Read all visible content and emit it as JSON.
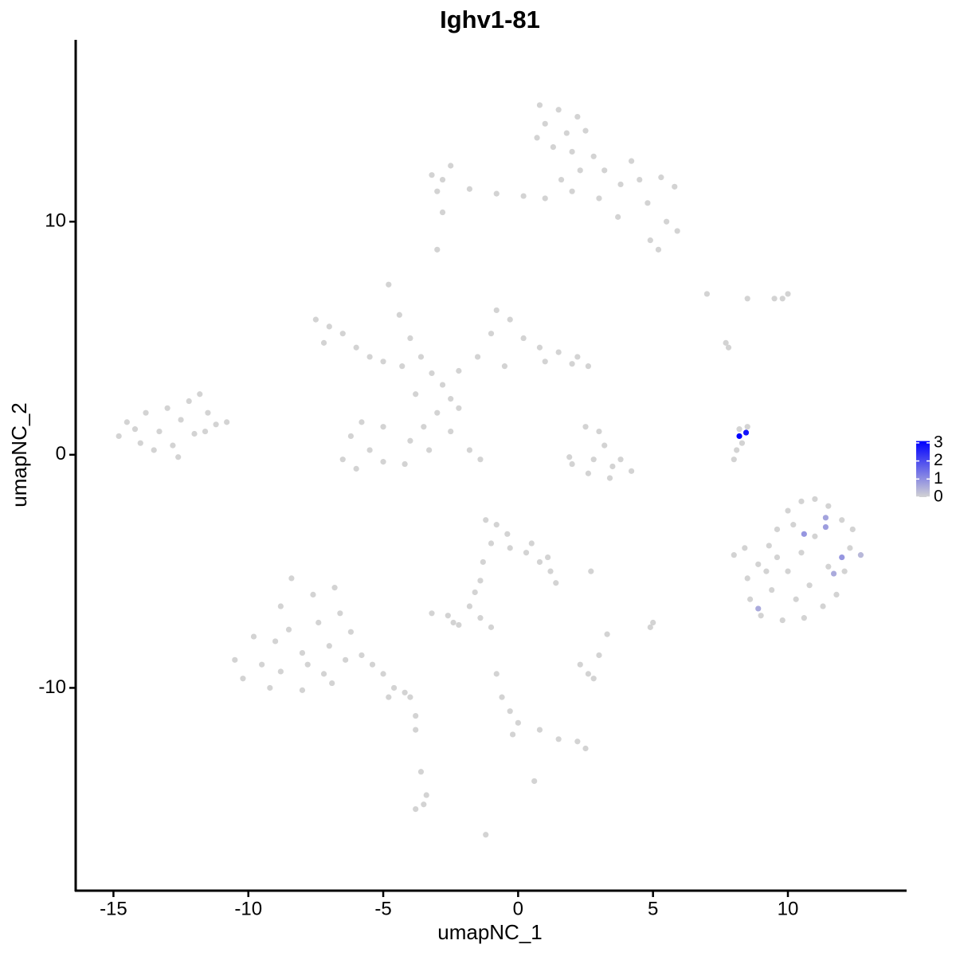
{
  "chart_data": {
    "type": "scatter",
    "title": "Ighv1-81",
    "x_label": "umapNC_1",
    "y_label": "umapNC_2",
    "xlim": [
      -16.4,
      14.4
    ],
    "ylim": [
      -18.7,
      17.8
    ],
    "xticks": [
      -15,
      -10,
      -5,
      0,
      5,
      10
    ],
    "yticks": [
      -10,
      0,
      10
    ],
    "grid": false,
    "series": [
      {
        "color": "#d3d3d3",
        "x": [
          0.8,
          1.5,
          2.2,
          1.0,
          1.8,
          2.5,
          1.3,
          2.0,
          0.7,
          2.8,
          3.2,
          3.8,
          4.5,
          5.3,
          5.8,
          4.8,
          5.5,
          5.9,
          4.9,
          5.2,
          3.7,
          3.0,
          2.0,
          1.0,
          0.2,
          -0.8,
          -1.8,
          -2.8,
          -3.2,
          -2.5,
          -3.0,
          -2.8,
          -3.0,
          2.3,
          1.6,
          4.2,
          -7.5,
          -7.0,
          -6.5,
          -7.2,
          -6.0,
          -5.5,
          -5.0,
          -4.3,
          -4.8,
          -4.4,
          -4.0,
          -3.6,
          -3.2,
          -2.8,
          -2.2,
          -1.5,
          -1.0,
          -0.8,
          -0.3,
          0.2,
          0.8,
          1.5,
          2.2,
          2.6,
          2.0,
          1.0,
          -0.5,
          -2.5,
          -3.0,
          -3.5,
          -4.0,
          -4.2,
          -5.0,
          -5.5,
          -6.2,
          -6.5,
          -6.0,
          -5.0,
          -3.3,
          -2.5,
          -1.8,
          -1.4,
          -2.2,
          -3.8,
          -5.8,
          -14.8,
          -14.5,
          -14.0,
          -13.8,
          -13.3,
          -13.0,
          -12.8,
          -12.5,
          -12.2,
          -12.0,
          -11.8,
          -11.5,
          -11.2,
          -10.8,
          -13.5,
          -12.6,
          -14.2,
          -11.6,
          2.5,
          3.0,
          3.2,
          2.8,
          3.5,
          2.0,
          1.9,
          2.6,
          3.4,
          4.2,
          3.8,
          8.0,
          8.1,
          8.3,
          8.5,
          8.2,
          8.0,
          8.4,
          8.9,
          9.3,
          9.6,
          10.0,
          10.5,
          11.0,
          11.5,
          12.0,
          12.4,
          12.3,
          12.1,
          11.8,
          11.3,
          10.6,
          9.8,
          9.0,
          8.6,
          8.5,
          9.4,
          10.0,
          10.5,
          11.0,
          10.2,
          9.6,
          10.8,
          11.5,
          9.2,
          10.3,
          -10.5,
          -10.2,
          -9.8,
          -9.5,
          -9.2,
          -8.8,
          -8.5,
          -8.4,
          -8.0,
          -8.0,
          -7.6,
          -7.4,
          -7.2,
          -7.0,
          -6.8,
          -6.6,
          -6.4,
          -6.2,
          -5.8,
          -5.4,
          -5.0,
          -4.6,
          -4.0,
          -4.2,
          -9.0,
          -7.8,
          -8.8,
          -6.9,
          -1.2,
          -0.8,
          -0.4,
          -1.0,
          -0.3,
          0.3,
          0.8,
          1.1,
          0.5,
          1.2,
          -1.3,
          -1.4,
          -1.6,
          -1.8,
          -2.2,
          1.4,
          -3.2,
          -2.6,
          -2.4,
          -1.4,
          -1.0,
          2.7,
          2.3,
          2.6,
          3.0,
          2.8,
          3.3,
          5.0,
          4.9,
          -0.8,
          -0.6,
          -0.3,
          0.0,
          -0.2,
          0.8,
          1.5,
          2.2,
          2.5,
          -3.8,
          -3.8,
          -3.6,
          -3.4,
          -3.5,
          -3.8,
          -1.2,
          0.6,
          -4.8,
          7.0,
          7.7,
          7.8,
          8.5,
          9.5,
          10.0,
          9.8
        ],
        "values": [
          15.0,
          14.8,
          14.5,
          14.2,
          13.8,
          13.9,
          13.2,
          13.0,
          13.6,
          12.8,
          12.2,
          11.6,
          11.8,
          11.9,
          11.5,
          10.8,
          10.0,
          9.6,
          9.2,
          8.8,
          10.2,
          11.0,
          11.3,
          11.0,
          11.1,
          11.2,
          11.4,
          11.8,
          12.0,
          12.4,
          11.3,
          10.4,
          8.8,
          12.2,
          11.8,
          12.6,
          5.8,
          5.5,
          5.2,
          4.8,
          4.6,
          4.2,
          4.0,
          3.8,
          7.3,
          6.0,
          5.0,
          4.2,
          3.5,
          3.0,
          3.6,
          4.2,
          5.2,
          6.2,
          5.8,
          5.0,
          4.6,
          4.4,
          4.2,
          3.8,
          3.9,
          4.0,
          3.8,
          2.4,
          1.8,
          1.2,
          0.6,
          -0.4,
          -0.3,
          0.2,
          0.8,
          -0.2,
          -0.6,
          1.2,
          0.2,
          1.0,
          0.2,
          -0.2,
          2.0,
          2.6,
          1.4,
          0.8,
          1.4,
          0.5,
          1.8,
          1.0,
          2.0,
          0.4,
          1.5,
          2.3,
          0.9,
          2.6,
          1.8,
          1.3,
          1.4,
          0.2,
          -0.1,
          1.1,
          1.0,
          1.2,
          1.0,
          0.4,
          -0.2,
          -0.5,
          -0.4,
          -0.1,
          -0.8,
          -1.0,
          -0.7,
          -0.2,
          -0.2,
          0.2,
          0.5,
          1.2,
          1.1,
          -4.3,
          -4.0,
          -4.7,
          -3.9,
          -3.2,
          -2.4,
          -2.0,
          -1.9,
          -2.2,
          -2.8,
          -3.2,
          -4.0,
          -5.0,
          -6.0,
          -6.5,
          -7.0,
          -7.1,
          -6.9,
          -6.2,
          -5.3,
          -5.8,
          -5.0,
          -4.2,
          -3.5,
          -3.0,
          -4.4,
          -5.6,
          -4.8,
          -5.0,
          -6.2,
          -8.8,
          -9.6,
          -7.8,
          -9.0,
          -10.0,
          -6.5,
          -7.5,
          -5.3,
          -8.5,
          -10.1,
          -6.0,
          -7.2,
          -9.4,
          -8.2,
          -5.7,
          -6.8,
          -8.8,
          -7.6,
          -8.6,
          -9.0,
          -9.4,
          -10.0,
          -10.4,
          -10.2,
          -8.0,
          -9.0,
          -9.3,
          -9.8,
          -2.8,
          -3.0,
          -3.4,
          -3.8,
          -4.0,
          -4.2,
          -4.6,
          -4.4,
          -3.8,
          -5.0,
          -4.6,
          -5.4,
          -5.9,
          -6.5,
          -7.3,
          -5.5,
          -6.8,
          -6.9,
          -7.2,
          -7.0,
          -7.4,
          -5.0,
          -9.0,
          -9.4,
          -8.6,
          -9.6,
          -7.7,
          -7.2,
          -7.4,
          -9.4,
          -10.4,
          -11.0,
          -11.5,
          -12.0,
          -11.8,
          -12.2,
          -12.3,
          -12.6,
          -11.2,
          -11.8,
          -13.6,
          -14.6,
          -15.0,
          -15.2,
          -16.3,
          -14.0,
          -10.4,
          6.9,
          4.8,
          4.6,
          6.7,
          6.7,
          6.9,
          6.7
        ]
      },
      {
        "x": [
          8.2,
          8.45,
          10.6,
          11.4,
          11.4,
          12.0,
          11.7,
          8.9,
          12.7
        ],
        "values": [
          0.8,
          0.95,
          -3.4,
          -2.7,
          -3.1,
          -4.4,
          -5.1,
          -6.6,
          -4.3
        ],
        "expression": [
          3.1,
          2.8,
          0.9,
          0.7,
          0.8,
          0.9,
          0.6,
          0.6,
          0.4
        ]
      }
    ],
    "colorbar": {
      "low": "#d3d3d3",
      "high": "#0000ff",
      "lim": [
        0,
        3.1
      ],
      "ticks": [
        0,
        1,
        2,
        3
      ]
    }
  }
}
